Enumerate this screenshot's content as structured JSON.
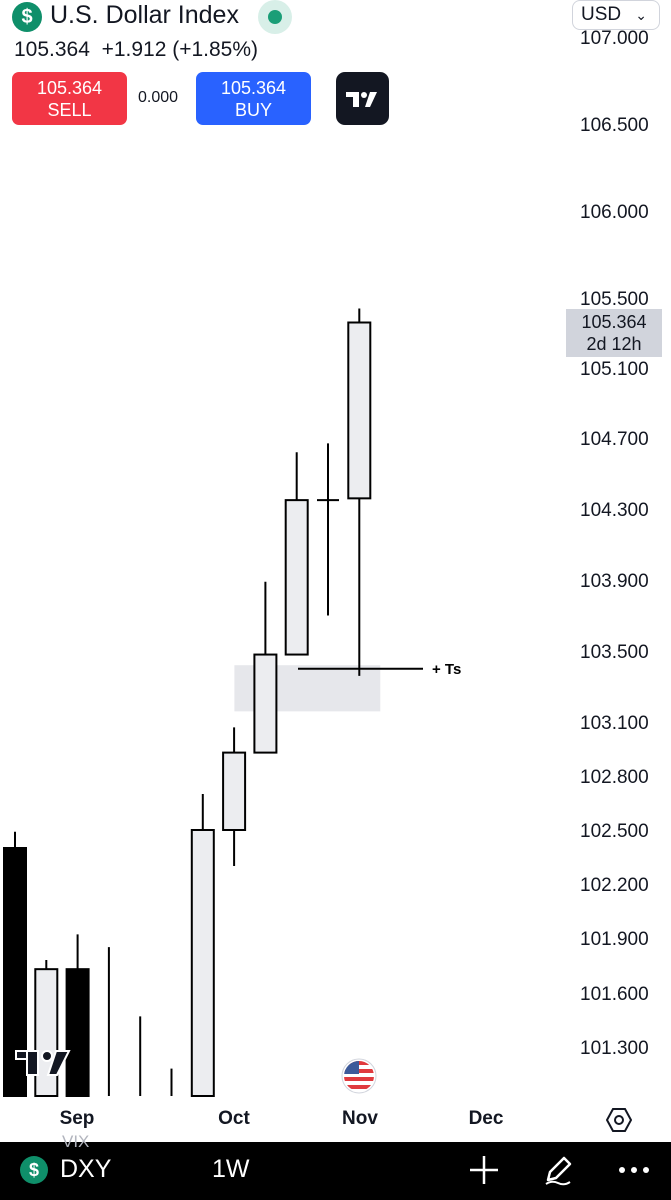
{
  "header": {
    "symbol_icon": "$",
    "title": "U.S. Dollar Index",
    "live_indicator": "market-open-dot",
    "currency": "USD",
    "quote_line": "105.364  +1.912 (+1.85%)",
    "sell_price": "105.364",
    "sell_label": "SELL",
    "spread": "0.000",
    "buy_price": "105.364",
    "buy_label": "BUY",
    "logo": "tradingview-logo"
  },
  "price_label": {
    "price": "105.364",
    "countdown": "2d 12h"
  },
  "bottom_bar": {
    "symbol_icon": "$",
    "symbol": "DXY",
    "interval": "1W",
    "overlay_text": "VIX"
  },
  "colors": {
    "up_fill": "#ecedf0",
    "down_fill": "#000000",
    "sell": "#f23645",
    "buy": "#2962ff",
    "brand_green": "#0f8f6a"
  },
  "chart_data": {
    "type": "candlestick",
    "y_axis_ticks": [
      "107.000",
      "106.500",
      "106.000",
      "105.500",
      "105.100",
      "104.700",
      "104.300",
      "103.900",
      "103.500",
      "103.100",
      "102.800",
      "102.500",
      "102.200",
      "101.900",
      "101.600",
      "101.300"
    ],
    "x_axis_ticks": [
      {
        "label": "Sep",
        "index": 2
      },
      {
        "label": "Oct",
        "index": 7
      },
      {
        "label": "Nov",
        "index": 11
      },
      {
        "label": "Dec",
        "index": 15
      }
    ],
    "ylim": [
      101.0,
      107.0
    ],
    "candles": [
      {
        "open": 102.4,
        "high": 102.49,
        "low": 100.0,
        "close": 100.0
      },
      {
        "open": 100.0,
        "high": 101.78,
        "low": 100.0,
        "close": 101.73
      },
      {
        "open": 101.73,
        "high": 101.92,
        "low": 100.9,
        "close": 100.9
      },
      {
        "open": 100.9,
        "high": 101.85,
        "low": 100.0,
        "close": 100.9
      },
      {
        "open": 100.9,
        "high": 101.47,
        "low": 100.0,
        "close": 100.9
      },
      {
        "open": 100.9,
        "high": 101.18,
        "low": 100.0,
        "close": 100.9
      },
      {
        "open": 100.0,
        "high": 102.7,
        "low": 100.0,
        "close": 102.5
      },
      {
        "open": 102.5,
        "high": 103.07,
        "low": 102.3,
        "close": 102.93
      },
      {
        "open": 102.93,
        "high": 103.89,
        "low": 102.93,
        "close": 103.48
      },
      {
        "open": 103.48,
        "high": 104.62,
        "low": 103.48,
        "close": 104.35
      },
      {
        "open": 104.35,
        "high": 104.67,
        "low": 103.7,
        "close": 104.35
      },
      {
        "open": 104.36,
        "high": 105.44,
        "low": 103.36,
        "close": 105.36
      }
    ],
    "zone": {
      "from_index": 8,
      "to_index": 11,
      "y_top": 103.42,
      "y_bottom": 103.16
    },
    "annotations": [
      {
        "text": "+ Ts",
        "y": 103.4
      }
    ],
    "last_price": 105.364,
    "flag_icon": "us-flag-icon"
  }
}
